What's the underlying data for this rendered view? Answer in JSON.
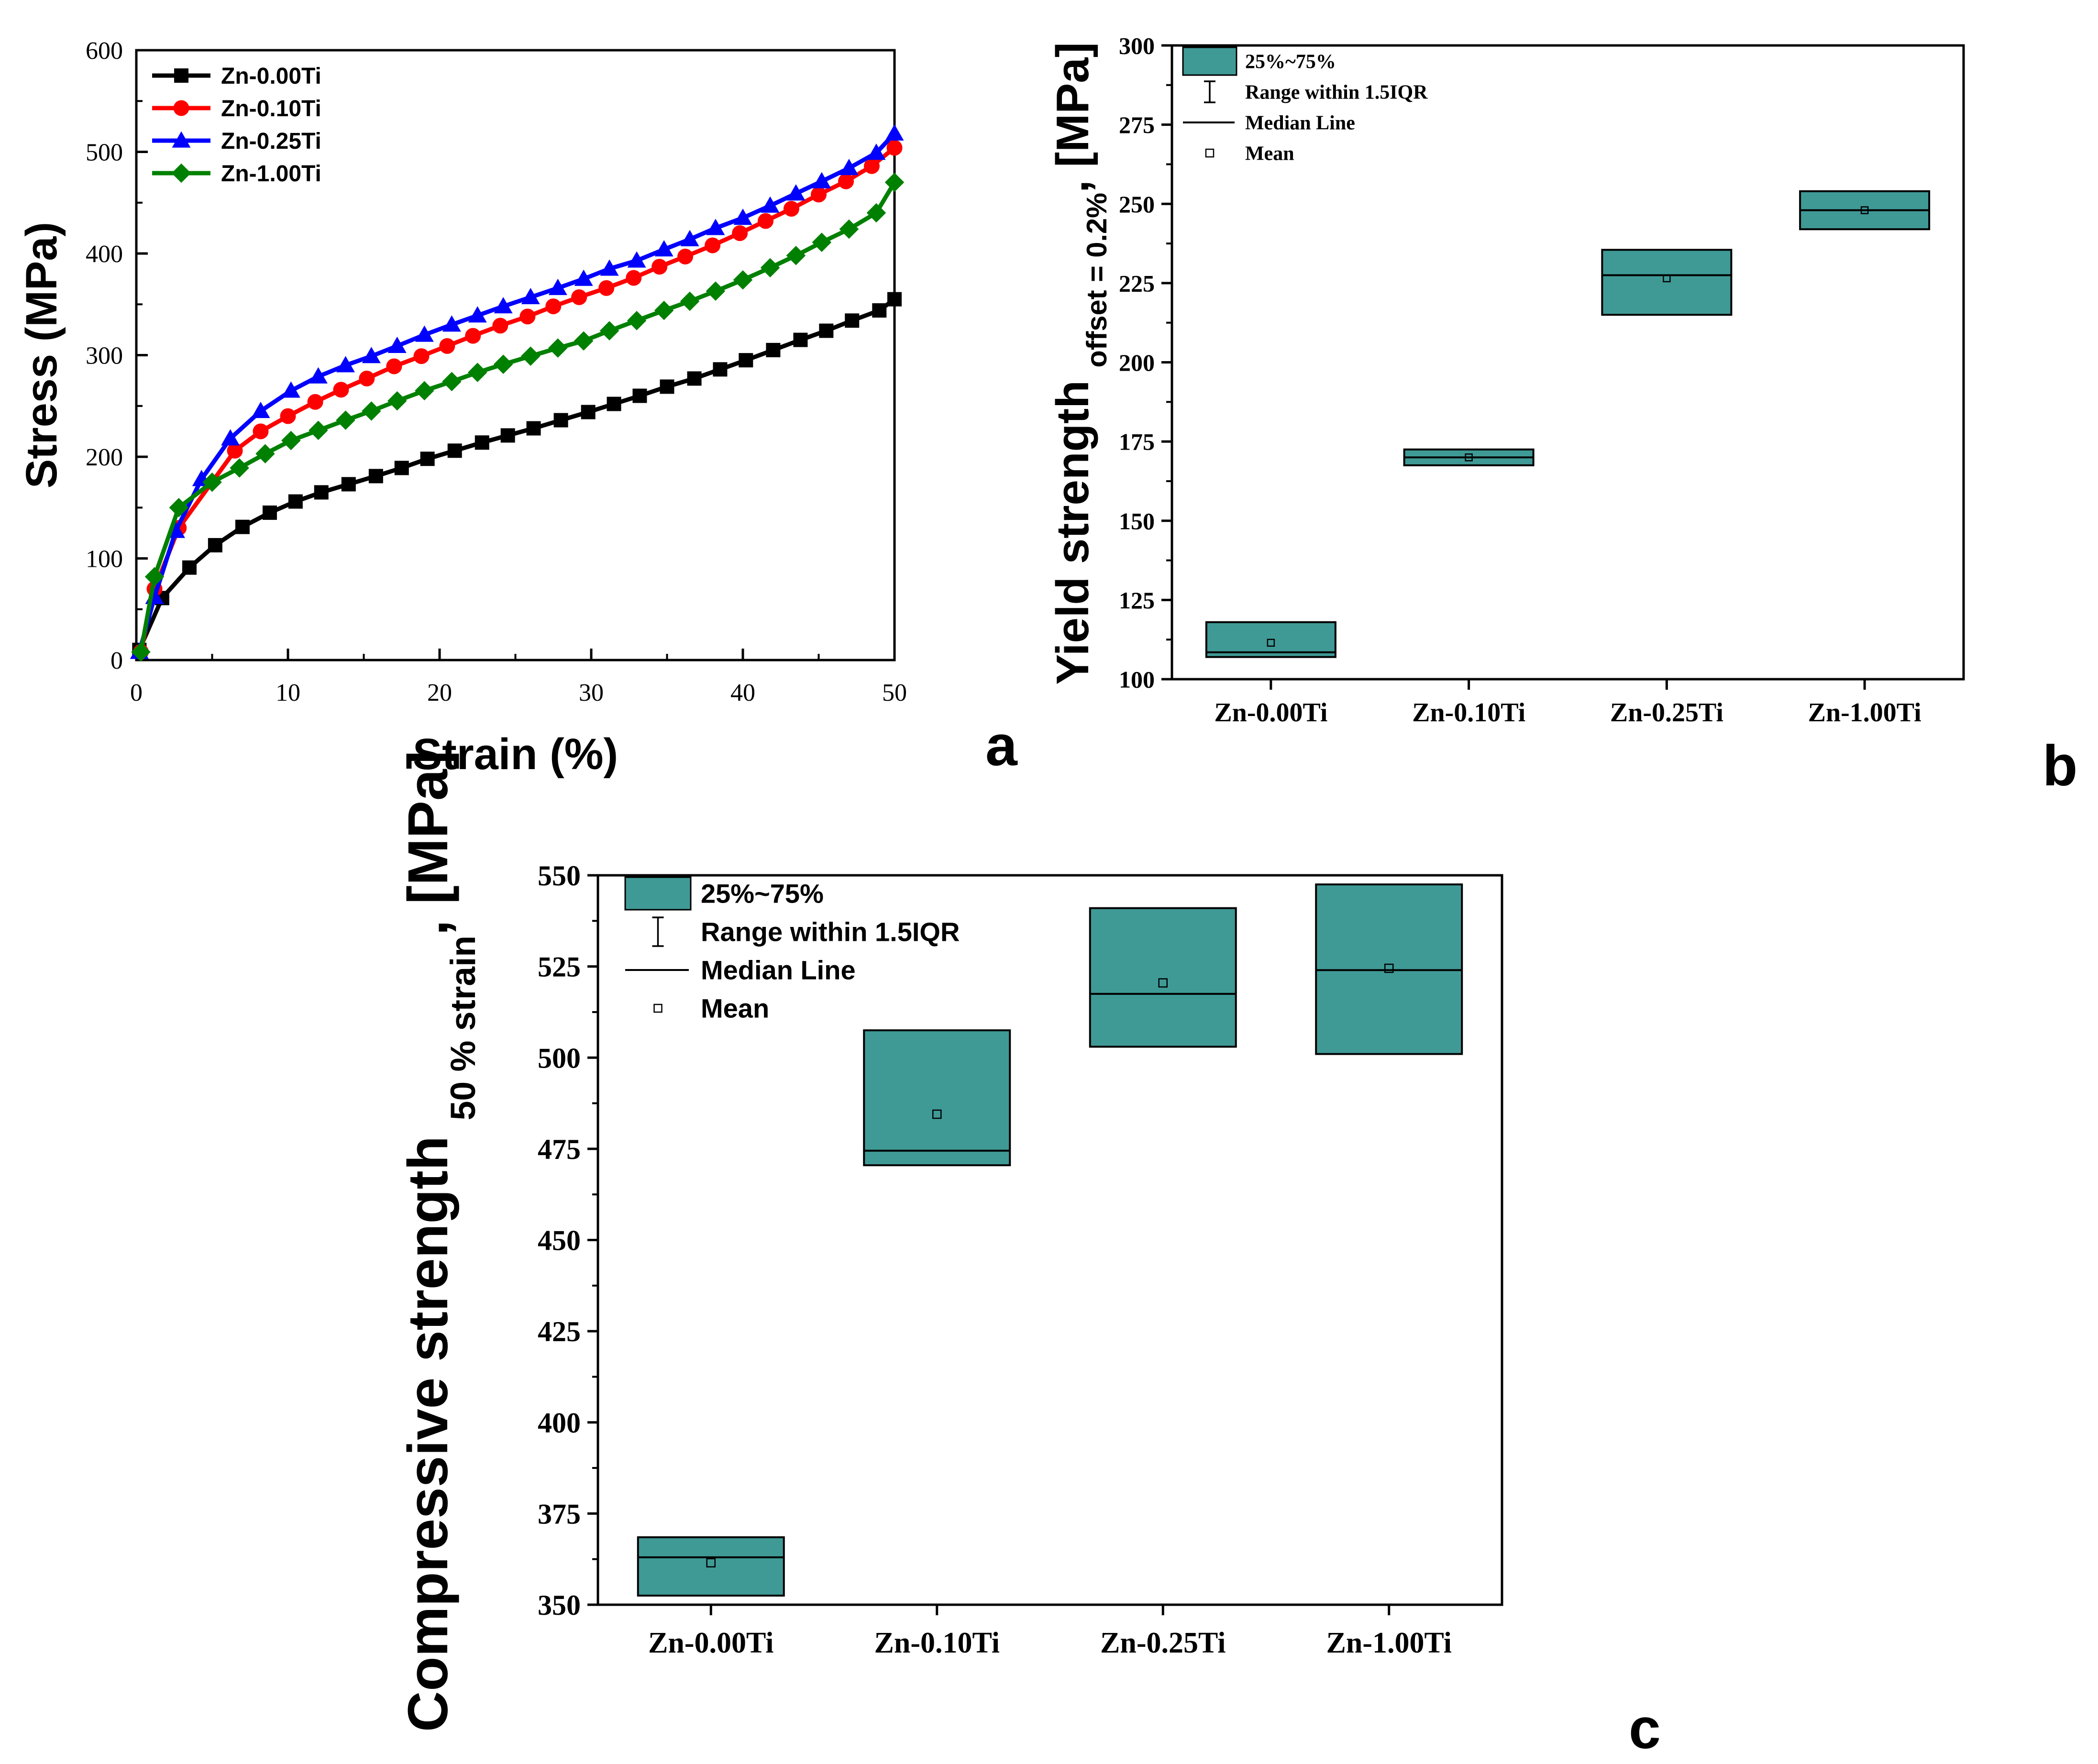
{
  "colors": {
    "black": "#000000",
    "red": "#ff0000",
    "blue": "#0000ff",
    "green": "#008000",
    "box": "#3f9a96"
  },
  "panel_labels": {
    "a": "a",
    "b": "b",
    "c": "c"
  },
  "chart_data": [
    {
      "id": "a",
      "type": "line",
      "xlabel": "Strain (%)",
      "ylabel": "Stress (MPa)",
      "xlim": [
        0,
        50
      ],
      "ylim": [
        0,
        600
      ],
      "xticks": [
        0,
        10,
        20,
        30,
        40,
        50
      ],
      "yticks": [
        0,
        100,
        200,
        300,
        400,
        500,
        600
      ],
      "legend_position": "top-left",
      "series": [
        {
          "name": "Zn-0.00Ti",
          "color": "#000000",
          "marker": "square",
          "x": [
            0.2,
            1.7,
            3.5,
            5.2,
            7.0,
            8.8,
            10.5,
            12.2,
            14.0,
            15.8,
            17.5,
            19.2,
            21.0,
            22.8,
            24.5,
            26.2,
            28.0,
            29.8,
            31.5,
            33.2,
            35.0,
            36.8,
            38.5,
            40.2,
            42.0,
            43.8,
            45.5,
            47.2,
            49.0,
            50.0
          ],
          "y": [
            10,
            61,
            91,
            113,
            131,
            145,
            156,
            165,
            173,
            181,
            189,
            198,
            206,
            214,
            221,
            228,
            236,
            244,
            252,
            260,
            269,
            277,
            286,
            295,
            305,
            315,
            324,
            334,
            344,
            355
          ]
        },
        {
          "name": "Zn-0.10Ti",
          "color": "#ff0000",
          "marker": "circle",
          "x": [
            0.3,
            1.2,
            2.8,
            6.5,
            8.2,
            10.0,
            11.8,
            13.5,
            15.2,
            17.0,
            18.8,
            20.5,
            22.2,
            24.0,
            25.8,
            27.5,
            29.2,
            31.0,
            32.8,
            34.5,
            36.2,
            38.0,
            39.8,
            41.5,
            43.2,
            45.0,
            46.8,
            48.5,
            50.0
          ],
          "y": [
            8,
            70,
            130,
            206,
            225,
            240,
            254,
            266,
            277,
            289,
            299,
            309,
            319,
            329,
            338,
            348,
            357,
            366,
            376,
            387,
            397,
            408,
            420,
            432,
            444,
            458,
            471,
            486,
            504
          ]
        },
        {
          "name": "Zn-0.25Ti",
          "color": "#0000ff",
          "marker": "triangle",
          "x": [
            0.2,
            1.2,
            2.6,
            4.3,
            6.2,
            8.2,
            10.2,
            12.0,
            13.8,
            15.5,
            17.2,
            19.0,
            20.8,
            22.5,
            24.2,
            26.0,
            27.8,
            29.5,
            31.2,
            33.0,
            34.8,
            36.5,
            38.2,
            40.0,
            41.8,
            43.5,
            45.2,
            47.0,
            48.8,
            50.0
          ],
          "y": [
            8,
            62,
            127,
            178,
            218,
            245,
            265,
            279,
            290,
            299,
            309,
            320,
            330,
            339,
            348,
            357,
            366,
            375,
            385,
            393,
            404,
            414,
            425,
            435,
            447,
            459,
            471,
            484,
            499,
            518
          ]
        },
        {
          "name": "Zn-1.00Ti",
          "color": "#008000",
          "marker": "diamond",
          "x": [
            0.3,
            1.2,
            2.8,
            5.0,
            6.8,
            8.5,
            10.2,
            12.0,
            13.8,
            15.5,
            17.2,
            19.0,
            20.8,
            22.5,
            24.2,
            26.0,
            27.8,
            29.5,
            31.2,
            33.0,
            34.8,
            36.5,
            38.2,
            40.0,
            41.8,
            43.5,
            45.2,
            47.0,
            48.8,
            50.0
          ],
          "y": [
            8,
            82,
            150,
            175,
            189,
            203,
            216,
            226,
            236,
            245,
            255,
            265,
            274,
            283,
            291,
            299,
            307,
            314,
            324,
            334,
            344,
            353,
            363,
            374,
            386,
            398,
            411,
            424,
            440,
            470
          ]
        }
      ]
    },
    {
      "id": "b",
      "type": "box",
      "ylabel": "Yield strength",
      "ylabel_sub": "offset = 0.2%",
      "ylabel_unit": ", [MPa]",
      "ylim": [
        100,
        300
      ],
      "yticks": [
        100,
        125,
        150,
        175,
        200,
        225,
        250,
        275,
        300
      ],
      "categories": [
        "Zn-0.00Ti",
        "Zn-0.10Ti",
        "Zn-0.25Ti",
        "Zn-1.00Ti"
      ],
      "boxes": [
        {
          "q1": 107,
          "q3": 118,
          "median": 108.5,
          "mean": 111.5
        },
        {
          "q1": 167.5,
          "q3": 172.5,
          "median": 170,
          "mean": 170
        },
        {
          "q1": 215,
          "q3": 235.5,
          "median": 227.5,
          "mean": 226.5
        },
        {
          "q1": 242,
          "q3": 254,
          "median": 248,
          "mean": 248
        }
      ],
      "legend": [
        "25%~75%",
        "Range within 1.5IQR",
        "Median Line",
        "Mean"
      ]
    },
    {
      "id": "c",
      "type": "box",
      "ylabel": "Compressive strength",
      "ylabel_sub": "50 % strain",
      "ylabel_unit": ", [MPa]",
      "ylim": [
        350,
        550
      ],
      "yticks": [
        350,
        375,
        400,
        425,
        450,
        475,
        500,
        525,
        550
      ],
      "categories": [
        "Zn-0.00Ti",
        "Zn-0.10Ti",
        "Zn-0.25Ti",
        "Zn-1.00Ti"
      ],
      "boxes": [
        {
          "q1": 352.5,
          "q3": 368.5,
          "median": 363,
          "mean": 361.5
        },
        {
          "q1": 470.5,
          "q3": 507.5,
          "median": 474.5,
          "mean": 484.5
        },
        {
          "q1": 503,
          "q3": 541,
          "median": 517.5,
          "mean": 520.5
        },
        {
          "q1": 501,
          "q3": 547.5,
          "median": 524,
          "mean": 524.5
        }
      ],
      "legend": [
        "25%~75%",
        "Range within 1.5IQR",
        "Median Line",
        "Mean"
      ]
    }
  ]
}
